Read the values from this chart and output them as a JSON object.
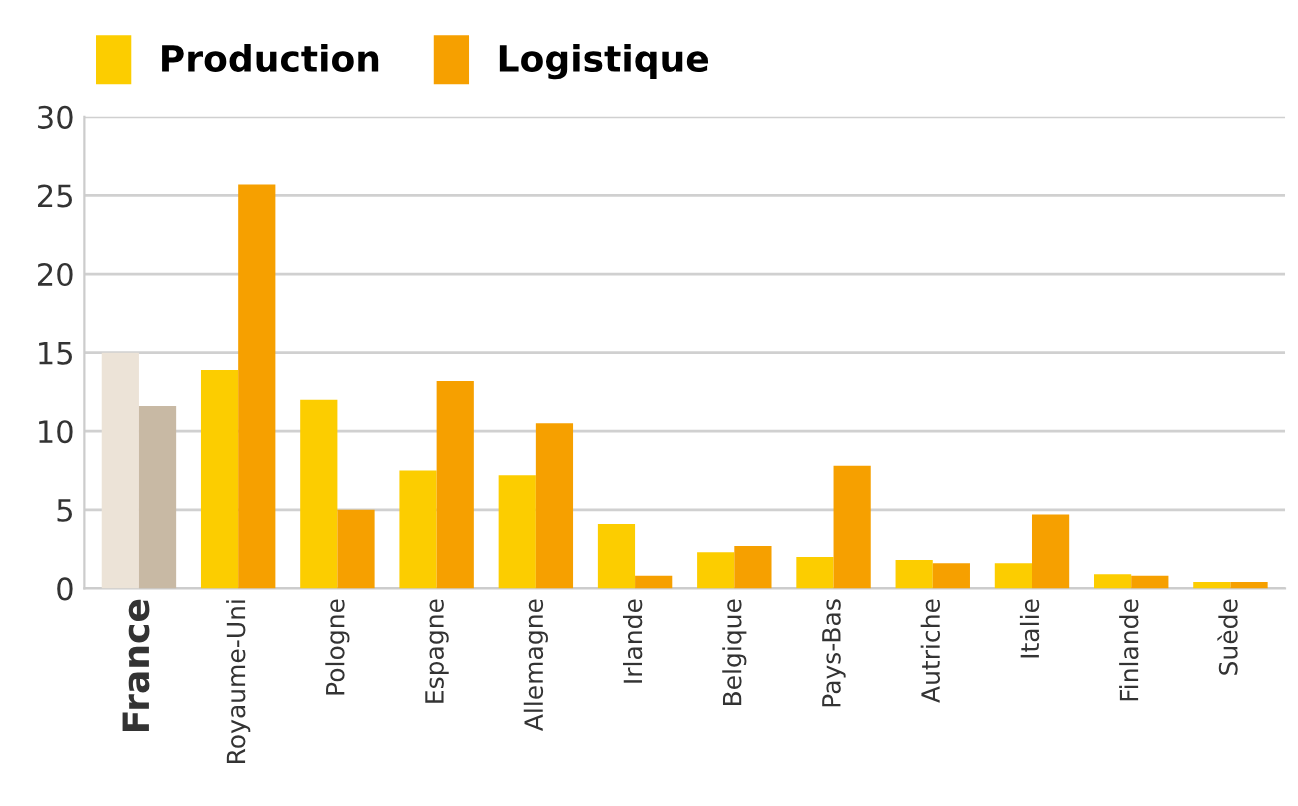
{
  "chart_data": {
    "type": "bar",
    "categories": [
      "France",
      "Royaume-Uni",
      "Pologne",
      "Espagne",
      "Allemagne",
      "Irlande",
      "Belgique",
      "Pays-Bas",
      "Autriche",
      "Italie",
      "Finlande",
      "Suède"
    ],
    "series": [
      {
        "name": "Production",
        "color": "#fccd00",
        "colors": [
          "#ece3d7",
          "#fccd00",
          "#fccd00",
          "#fccd00",
          "#fccd00",
          "#fccd00",
          "#fccd00",
          "#fccd00",
          "#fccd00",
          "#fccd00",
          "#fccd00",
          "#fccd00"
        ],
        "values": [
          15,
          13.9,
          12,
          7.5,
          7.2,
          4.1,
          2.3,
          2,
          1.8,
          1.6,
          0.9,
          0.4
        ]
      },
      {
        "name": "Logistique",
        "color": "#f6a000",
        "colors": [
          "#c8b9a4",
          "#f6a000",
          "#f6a000",
          "#f6a000",
          "#f6a000",
          "#f6a000",
          "#f6a000",
          "#f6a000",
          "#f6a000",
          "#f6a000",
          "#f6a000",
          "#f6a000"
        ],
        "values": [
          11.6,
          25.7,
          5,
          13.2,
          10.5,
          0.8,
          2.7,
          7.8,
          1.6,
          4.7,
          0.8,
          0.4
        ]
      }
    ],
    "ylim": [
      0,
      30
    ],
    "yticks": [
      0,
      5,
      10,
      15,
      20,
      25,
      30
    ],
    "grid": "y",
    "legend": "top left"
  }
}
